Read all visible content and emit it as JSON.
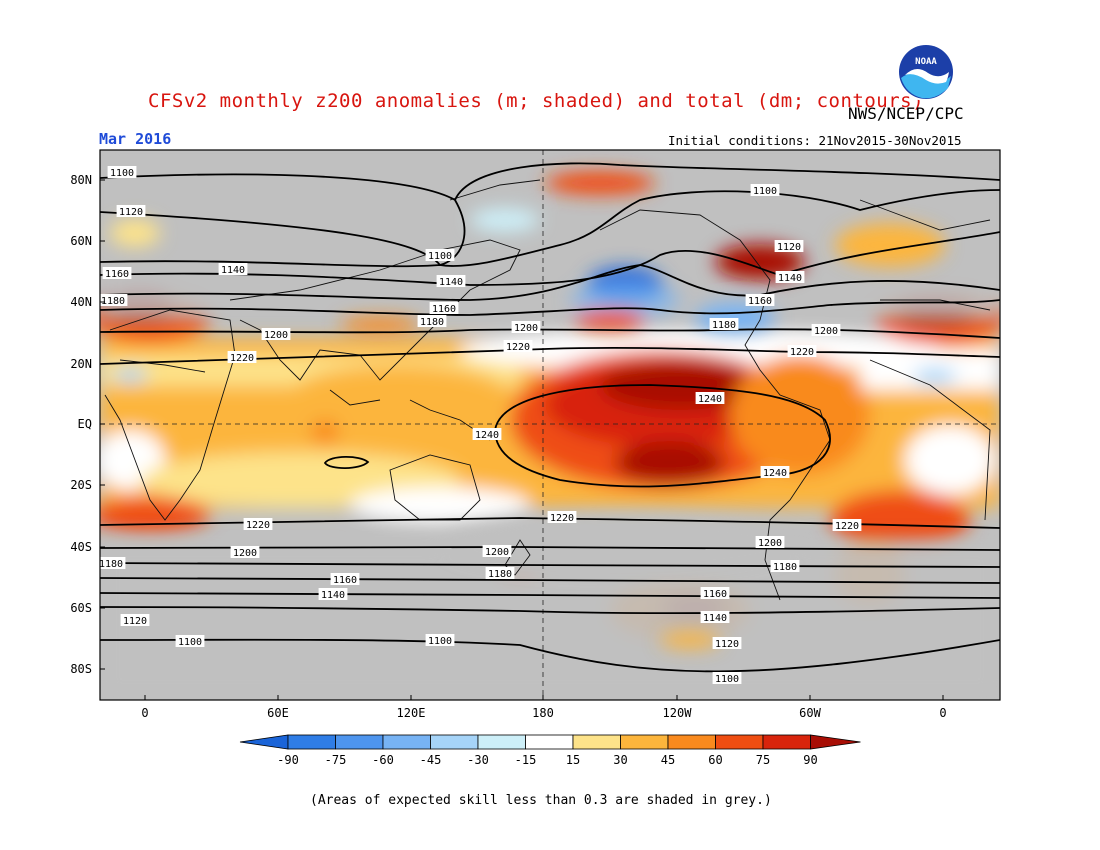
{
  "header": {
    "title": "CFSv2 monthly z200 anomalies (m; shaded) and total (dm; contours)",
    "credit": "NWS/NCEP/CPC",
    "period": "Mar 2016",
    "initial_conditions": "Initial conditions: 21Nov2015-30Nov2015",
    "logo_text": "NOAA"
  },
  "map": {
    "lat_labels": [
      "80N",
      "60N",
      "40N",
      "20N",
      "EQ",
      "20S",
      "40S",
      "60S",
      "80S"
    ],
    "lon_labels": [
      "0",
      "60E",
      "120E",
      "180",
      "120W",
      "60W",
      "0"
    ],
    "contour_labels": [
      "1100",
      "1120",
      "1140",
      "1160",
      "1180",
      "1200",
      "1220",
      "1240"
    ],
    "missing_skill_color": "#c0c0c0"
  },
  "colorbar": {
    "ticks": [
      "-90",
      "-75",
      "-60",
      "-45",
      "-30",
      "-15",
      "15",
      "30",
      "45",
      "60",
      "75",
      "90"
    ],
    "colors": [
      "#1a64d8",
      "#2f7de6",
      "#4e95ee",
      "#77b3f4",
      "#a6d4f8",
      "#cdeff8",
      "#ffffff",
      "#fde38a",
      "#fcb53c",
      "#f98a1e",
      "#ef4e12",
      "#d8240c",
      "#a80e05"
    ]
  },
  "footer": {
    "note": "(Areas of expected skill less than 0.3 are shaded in grey.)"
  }
}
